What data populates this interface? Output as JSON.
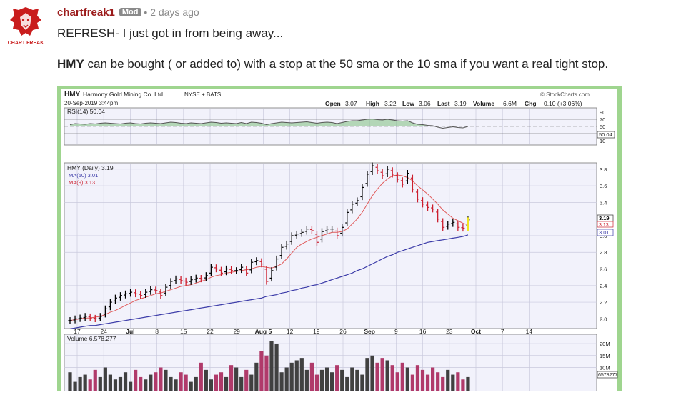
{
  "post": {
    "author": "chartfreak1",
    "badge": "Mod",
    "separator": "•",
    "time": "2 days ago",
    "avatar_caption": "CHART FREAK",
    "line1": "REFRESH- I just got in from being away...",
    "ticker": "HMY",
    "line2_rest": " can be bought ( or added to) with a stop at the 50 sma or the 10 sma if you want a real tight stop."
  },
  "chart": {
    "symbol": "HMY",
    "company": "Harmony Gold Mining Co. Ltd.",
    "exchange": "NYSE + BATS",
    "date": "20-Sep-2019 3:44pm",
    "source": "© StockCharts.com",
    "quote": {
      "open_label": "Open",
      "open": "3.07",
      "high_label": "High",
      "high": "3.22",
      "low_label": "Low",
      "low": "3.06",
      "last_label": "Last",
      "last": "3.19",
      "volume_label": "Volume",
      "volume": "6.6M",
      "chg_label": "Chg",
      "chg": "+0.10 (+3.06%)"
    },
    "rsi_label": "RSI(14) 50.04",
    "rsi_value_tag": "50.04",
    "price_label": "HMY (Daily) 3.19",
    "ma50_label": "MA(50) 3.01",
    "ma9_label": "MA(9) 3.13",
    "last_tag": "3.19",
    "ma9_tag": "3.13",
    "ma50_tag": "3.01",
    "volume_label": "Volume 6,578,277",
    "volume_tag": "6578277",
    "colors": {
      "up": "#000000",
      "down": "#cc1f2e",
      "ma50": "#3b3ba8",
      "ma9": "#e05a5a",
      "vol_up": "#404040",
      "vol_down": "#b03a6a",
      "panel": "#f2f2fb",
      "frame": "#9fd58f"
    }
  },
  "chart_data": {
    "type": "line",
    "title": "HMY Harmony Gold Mining Co. Ltd. NYSE + BATS",
    "x_tick_labels": [
      "17",
      "24",
      "Jul",
      "8",
      "15",
      "22",
      "29",
      "Aug 5",
      "12",
      "19",
      "26",
      "Sep",
      "9",
      "16",
      "23",
      "Oct",
      "7",
      "14"
    ],
    "price_axis": {
      "ticks": [
        "3.8",
        "3.6",
        "3.4",
        "3.2",
        "3.0",
        "2.8",
        "2.6",
        "2.4",
        "2.2",
        "2.0"
      ],
      "ylim": [
        1.9,
        3.85
      ]
    },
    "rsi_axis": {
      "ticks": [
        "90",
        "70",
        "50",
        "30",
        "10"
      ],
      "ylim": [
        0,
        100
      ]
    },
    "volume_axis": {
      "ticks": [
        "20M",
        "15M",
        "10M"
      ],
      "ylim": [
        0,
        23
      ]
    },
    "series": [
      {
        "name": "HMY (Daily)",
        "values": [
          1.98,
          2.0,
          2.01,
          2.03,
          2.01,
          2.0,
          2.03,
          2.12,
          2.2,
          2.25,
          2.28,
          2.3,
          2.32,
          2.3,
          2.28,
          2.32,
          2.35,
          2.34,
          2.28,
          2.38,
          2.45,
          2.48,
          2.46,
          2.44,
          2.47,
          2.49,
          2.48,
          2.52,
          2.62,
          2.6,
          2.55,
          2.6,
          2.58,
          2.58,
          2.62,
          2.55,
          2.68,
          2.7,
          2.66,
          2.45,
          2.58,
          2.72,
          2.86,
          2.9,
          3.0,
          3.02,
          3.04,
          3.08,
          3.06,
          2.92,
          3.05,
          3.08,
          3.08,
          3.0,
          3.1,
          3.28,
          3.38,
          3.42,
          3.58,
          3.74,
          3.84,
          3.78,
          3.72,
          3.8,
          3.74,
          3.68,
          3.62,
          3.75,
          3.56,
          3.44,
          3.38,
          3.34,
          3.32,
          3.2,
          3.1,
          3.14,
          3.16,
          3.1,
          3.09,
          3.19
        ]
      },
      {
        "name": "MA(9)",
        "values": [
          1.98,
          1.99,
          2.0,
          2.01,
          2.01,
          2.02,
          2.03,
          2.05,
          2.08,
          2.1,
          2.13,
          2.16,
          2.19,
          2.22,
          2.24,
          2.26,
          2.28,
          2.3,
          2.31,
          2.33,
          2.35,
          2.37,
          2.39,
          2.4,
          2.41,
          2.43,
          2.45,
          2.47,
          2.5,
          2.52,
          2.53,
          2.55,
          2.56,
          2.57,
          2.58,
          2.59,
          2.6,
          2.62,
          2.63,
          2.62,
          2.61,
          2.63,
          2.66,
          2.72,
          2.79,
          2.86,
          2.9,
          2.93,
          2.96,
          2.98,
          3.0,
          3.02,
          3.04,
          3.04,
          3.05,
          3.08,
          3.14,
          3.2,
          3.28,
          3.38,
          3.48,
          3.56,
          3.63,
          3.68,
          3.72,
          3.73,
          3.72,
          3.7,
          3.66,
          3.6,
          3.55,
          3.5,
          3.44,
          3.38,
          3.31,
          3.26,
          3.21,
          3.18,
          3.15,
          3.13
        ]
      },
      {
        "name": "MA(50)",
        "values": [
          1.88,
          1.89,
          1.9,
          1.91,
          1.92,
          1.92,
          1.93,
          1.94,
          1.95,
          1.96,
          1.97,
          1.98,
          1.99,
          2.0,
          2.01,
          2.02,
          2.03,
          2.04,
          2.05,
          2.06,
          2.07,
          2.08,
          2.09,
          2.1,
          2.11,
          2.12,
          2.13,
          2.14,
          2.15,
          2.16,
          2.17,
          2.18,
          2.19,
          2.2,
          2.21,
          2.22,
          2.23,
          2.24,
          2.25,
          2.27,
          2.28,
          2.29,
          2.31,
          2.32,
          2.34,
          2.35,
          2.37,
          2.38,
          2.4,
          2.41,
          2.43,
          2.45,
          2.47,
          2.49,
          2.51,
          2.53,
          2.55,
          2.58,
          2.6,
          2.63,
          2.66,
          2.69,
          2.72,
          2.75,
          2.77,
          2.8,
          2.82,
          2.84,
          2.86,
          2.88,
          2.9,
          2.92,
          2.93,
          2.94,
          2.95,
          2.96,
          2.97,
          2.98,
          2.99,
          3.01
        ]
      },
      {
        "name": "RSI(14)",
        "values": [
          55,
          58,
          57,
          56,
          58,
          57,
          59,
          60,
          59,
          58,
          57,
          59,
          60,
          58,
          57,
          59,
          60,
          59,
          58,
          60,
          62,
          61,
          59,
          58,
          60,
          59,
          58,
          60,
          62,
          61,
          59,
          60,
          59,
          58,
          61,
          58,
          62,
          61,
          59,
          55,
          58,
          60,
          62,
          61,
          60,
          61,
          62,
          63,
          61,
          59,
          61,
          62,
          61,
          58,
          61,
          64,
          66,
          66,
          68,
          70,
          71,
          69,
          68,
          70,
          68,
          66,
          65,
          66,
          60,
          56,
          55,
          53,
          52,
          48,
          45,
          47,
          49,
          47,
          46,
          50.04
        ]
      },
      {
        "name": "Volume",
        "values": [
          8,
          4,
          6,
          7,
          5,
          9,
          6,
          10,
          7,
          5,
          6,
          8,
          4,
          9,
          6,
          5,
          7,
          8,
          10,
          9,
          6,
          5,
          8,
          7,
          4,
          6,
          12,
          9,
          5,
          7,
          8,
          6,
          11,
          10,
          6,
          9,
          7,
          12,
          17,
          15,
          21,
          20,
          8,
          10,
          12,
          13,
          14,
          9,
          12,
          7,
          9,
          10,
          8,
          11,
          9,
          6,
          10,
          9,
          7,
          14,
          15,
          12,
          14,
          13,
          11,
          8,
          12,
          10,
          7,
          11,
          9,
          7,
          10,
          8,
          6,
          9,
          7,
          8,
          5,
          6
        ]
      }
    ]
  }
}
